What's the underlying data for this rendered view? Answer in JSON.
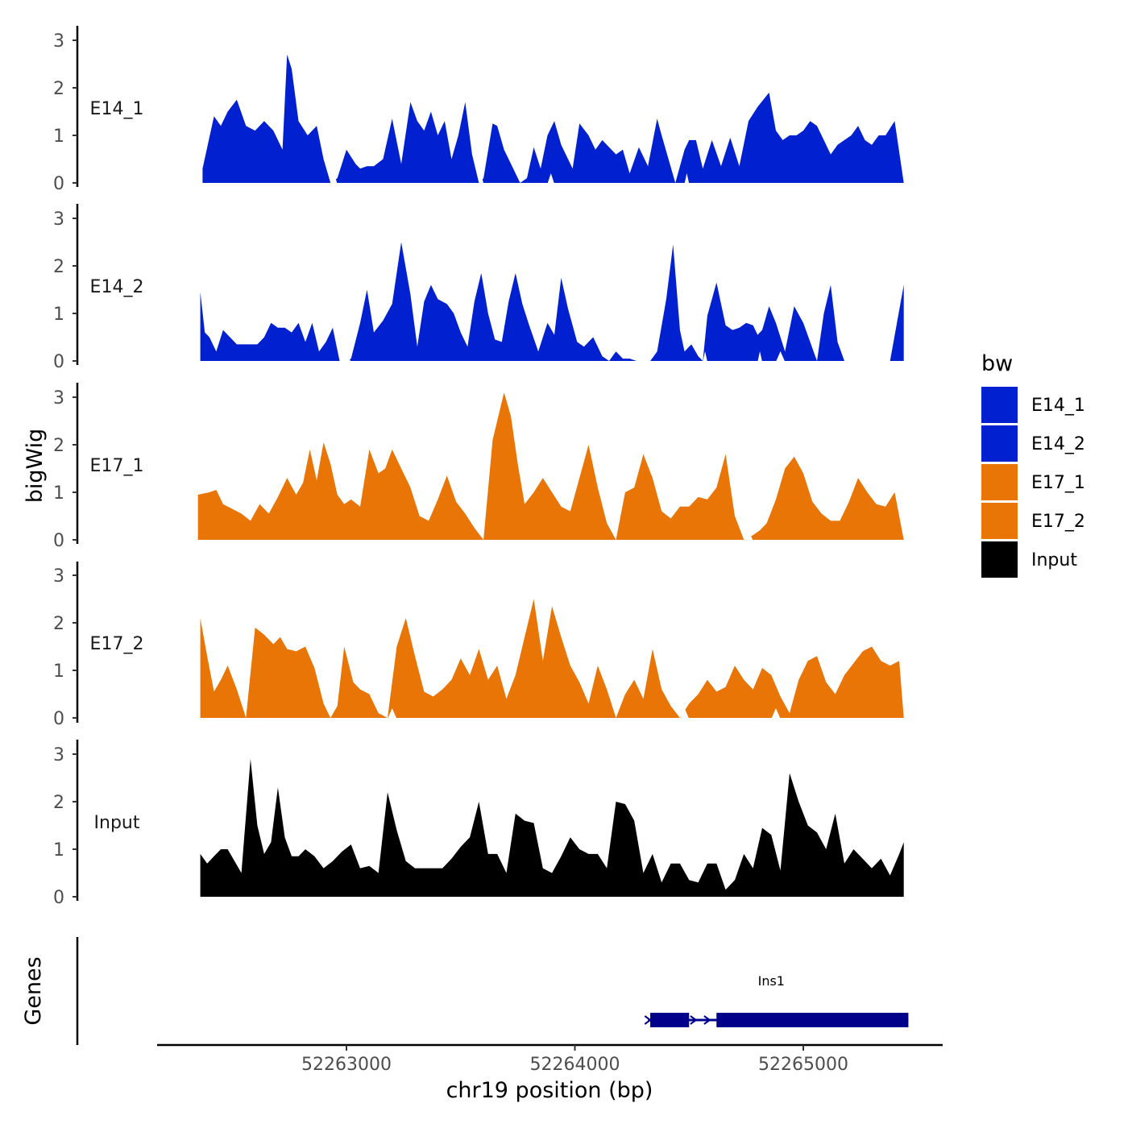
{
  "chart_data": {
    "type": "area",
    "xlabel": "chr19 position (bp)",
    "ylabel": "bigWig",
    "genes_label": "Genes",
    "xlim": [
      52262200,
      52265600
    ],
    "ylim": [
      0,
      3.3
    ],
    "x_ticks": [
      52263000,
      52264000,
      52265000
    ],
    "x_tick_labels": [
      "52263000",
      "52264000",
      "52265000"
    ],
    "y_ticks": [
      0,
      1,
      2,
      3
    ],
    "y_tick_labels": [
      "0",
      "1",
      "2",
      "3"
    ],
    "legend": {
      "title": "bw",
      "position": "right",
      "entries": [
        {
          "label": "E14_1",
          "color": "#0121D1"
        },
        {
          "label": "E14_2",
          "color": "#0121D1"
        },
        {
          "label": "E17_1",
          "color": "#E87506"
        },
        {
          "label": "E17_2",
          "color": "#E87506"
        },
        {
          "label": "Input",
          "color": "#000000"
        }
      ]
    },
    "series": [
      {
        "name": "E14_1",
        "color": "#0121D1",
        "x": [
          52262370,
          52262420,
          52262450,
          52262480,
          52262520,
          52262560,
          52262600,
          52262640,
          52262680,
          52262720,
          52262740,
          52262760,
          52262790,
          52262830,
          52262870,
          52262900,
          52262930,
          52262960,
          52263000,
          52263040,
          52263060,
          52263090,
          52263120,
          52263160,
          52263200,
          52263240,
          52263280,
          52263310,
          52263340,
          52263370,
          52263400,
          52263430,
          52263460,
          52263490,
          52263520,
          52263550,
          52263580,
          52263600,
          52263640,
          52263660,
          52263690,
          52263730,
          52263760,
          52263790,
          52263820,
          52263850,
          52263880,
          52263910,
          52263940,
          52263960,
          52263990,
          52264020,
          52264060,
          52264090,
          52264120,
          52264150,
          52264180,
          52264210,
          52264240,
          52264280,
          52264320,
          52264360,
          52264380,
          52264410,
          52264440,
          52264480,
          52264500,
          52264530,
          52264560,
          52264600,
          52264640,
          52264680,
          52264720,
          52264760,
          52264800,
          52264850,
          52264880,
          52264910,
          52264940,
          52264970,
          52265000,
          52265030,
          52265060,
          52265090,
          52265120,
          52265150,
          52265180,
          52265210,
          52265240,
          52265270,
          52265300,
          52265330,
          52265360,
          52265400,
          52265440
        ],
        "values": [
          0.3,
          1.4,
          1.2,
          1.5,
          1.75,
          1.2,
          1.1,
          1.3,
          1.1,
          0.7,
          2.7,
          2.4,
          1.3,
          1.0,
          1.2,
          0.5,
          0.0,
          0.1,
          0.7,
          0.4,
          0.3,
          0.35,
          0.35,
          0.5,
          1.35,
          0.4,
          1.7,
          1.3,
          1.1,
          1.5,
          1.0,
          1.3,
          0.5,
          1.0,
          1.7,
          0.6,
          0.0,
          0.1,
          1.25,
          1.2,
          0.7,
          0.3,
          0.0,
          0.1,
          0.75,
          0.3,
          1.0,
          1.3,
          0.8,
          0.6,
          0.3,
          1.25,
          1.0,
          0.7,
          0.9,
          0.75,
          0.6,
          0.7,
          0.2,
          0.75,
          0.35,
          1.35,
          1.0,
          0.5,
          0.0,
          0.7,
          0.9,
          0.9,
          0.3,
          0.9,
          0.35,
          0.95,
          0.35,
          1.3,
          1.6,
          1.9,
          1.1,
          0.9,
          1.0,
          1.0,
          1.1,
          1.3,
          1.2,
          0.9,
          0.6,
          0.8,
          0.9,
          1.0,
          1.2,
          0.9,
          0.8,
          1.0,
          1.0,
          1.3,
          0.0
        ],
        "gaps": [
          [
            52262930,
            52262960
          ],
          [
            52263580,
            52263600
          ],
          [
            52263880,
            52263910
          ],
          [
            52264480,
            52264500
          ]
        ]
      },
      {
        "name": "E14_2",
        "color": "#0121D1",
        "x": [
          52262360,
          52262380,
          52262400,
          52262430,
          52262460,
          52262490,
          52262520,
          52262550,
          52262580,
          52262610,
          52262640,
          52262670,
          52262700,
          52262730,
          52262760,
          52262790,
          52262820,
          52262850,
          52262880,
          52262910,
          52262940,
          52262970,
          52263000,
          52263020,
          52263060,
          52263090,
          52263120,
          52263160,
          52263200,
          52263240,
          52263280,
          52263310,
          52263340,
          52263370,
          52263400,
          52263440,
          52263470,
          52263500,
          52263530,
          52263560,
          52263590,
          52263620,
          52263650,
          52263680,
          52263710,
          52263740,
          52263770,
          52263800,
          52263840,
          52263880,
          52263910,
          52263940,
          52263970,
          52264010,
          52264040,
          52264080,
          52264120,
          52264150,
          52264180,
          52264210,
          52264240,
          52264270,
          52264300,
          52264330,
          52264360,
          52264400,
          52264430,
          52264460,
          52264480,
          52264510,
          52264540,
          52264560,
          52264580,
          52264620,
          52264660,
          52264690,
          52264720,
          52264750,
          52264780,
          52264800,
          52264820,
          52264850,
          52264880,
          52264920,
          52264960,
          52265000,
          52265030,
          52265060,
          52265090,
          52265120,
          52265150,
          52265180,
          52265210,
          52265250,
          52265290,
          52265330,
          52265380,
          52265440
        ],
        "values": [
          1.45,
          0.6,
          0.5,
          0.2,
          0.65,
          0.5,
          0.35,
          0.35,
          0.35,
          0.35,
          0.5,
          0.8,
          0.7,
          0.7,
          0.6,
          0.8,
          0.4,
          0.8,
          0.2,
          0.4,
          0.7,
          0.0,
          0.0,
          0.05,
          0.8,
          1.5,
          0.6,
          0.85,
          1.2,
          2.5,
          1.4,
          0.3,
          1.25,
          1.6,
          1.3,
          1.2,
          1.0,
          0.6,
          0.3,
          1.25,
          1.85,
          1.0,
          0.45,
          0.4,
          1.25,
          1.85,
          1.2,
          0.75,
          0.2,
          0.8,
          0.55,
          1.75,
          1.1,
          0.4,
          0.3,
          0.5,
          0.1,
          0.0,
          0.2,
          0.05,
          0.05,
          0.0,
          0.0,
          0.0,
          0.2,
          1.3,
          2.45,
          0.65,
          0.2,
          0.35,
          0.1,
          0.0,
          0.95,
          1.65,
          0.75,
          0.65,
          0.7,
          0.8,
          0.75,
          0.55,
          0.65,
          1.15,
          0.8,
          0.2,
          1.15,
          0.8,
          0.4,
          0.0,
          1.0,
          1.6,
          0.4,
          0.0,
          0.0,
          0.0,
          0.0,
          0.0,
          0.0,
          1.6
        ],
        "gaps": [
          [
            52262970,
            52263020
          ],
          [
            52264560,
            52264580
          ],
          [
            52264800,
            52264820
          ],
          [
            52264880,
            52264920
          ]
        ]
      },
      {
        "name": "E17_1",
        "color": "#E87506",
        "x": [
          52262350,
          52262400,
          52262430,
          52262460,
          52262500,
          52262540,
          52262580,
          52262620,
          52262660,
          52262700,
          52262740,
          52262780,
          52262810,
          52262840,
          52262870,
          52262900,
          52262930,
          52262960,
          52262990,
          52263020,
          52263060,
          52263100,
          52263140,
          52263170,
          52263200,
          52263240,
          52263280,
          52263320,
          52263360,
          52263400,
          52263440,
          52263480,
          52263520,
          52263560,
          52263600,
          52263640,
          52263690,
          52263720,
          52263750,
          52263780,
          52263820,
          52263860,
          52263900,
          52263940,
          52263980,
          52264020,
          52264060,
          52264100,
          52264140,
          52264180,
          52264220,
          52264260,
          52264300,
          52264340,
          52264380,
          52264420,
          52264460,
          52264500,
          52264540,
          52264580,
          52264620,
          52264660,
          52264700,
          52264740,
          52264780,
          52264810,
          52264840,
          52264880,
          52264920,
          52264960,
          52265000,
          52265040,
          52265080,
          52265120,
          52265160,
          52265200,
          52265240,
          52265280,
          52265320,
          52265360,
          52265400,
          52265440
        ],
        "values": [
          0.95,
          1.0,
          1.05,
          0.75,
          0.65,
          0.55,
          0.4,
          0.75,
          0.55,
          0.9,
          1.3,
          0.95,
          1.2,
          1.9,
          1.25,
          2.05,
          1.6,
          0.95,
          0.75,
          0.85,
          0.7,
          1.9,
          1.4,
          1.5,
          1.9,
          1.5,
          1.1,
          0.5,
          0.4,
          0.85,
          1.35,
          0.8,
          0.55,
          0.25,
          0.0,
          2.1,
          3.1,
          2.6,
          1.6,
          0.75,
          1.0,
          1.3,
          1.0,
          0.7,
          0.6,
          1.3,
          2.0,
          1.1,
          0.35,
          0.0,
          1.0,
          1.1,
          1.8,
          1.3,
          0.6,
          0.45,
          0.7,
          0.7,
          0.9,
          0.85,
          1.1,
          1.8,
          0.5,
          0.0,
          0.1,
          0.2,
          0.35,
          0.85,
          1.5,
          1.75,
          1.4,
          0.8,
          0.55,
          0.4,
          0.4,
          0.8,
          1.3,
          1.0,
          0.75,
          0.7,
          1.0,
          0.0
        ],
        "gaps": [
          [
            52264740,
            52264780
          ]
        ]
      },
      {
        "name": "E17_2",
        "color": "#E87506",
        "x": [
          52262360,
          52262390,
          52262420,
          52262450,
          52262480,
          52262520,
          52262560,
          52262600,
          52262640,
          52262680,
          52262710,
          52262740,
          52262780,
          52262820,
          52262860,
          52262900,
          52262930,
          52262960,
          52262990,
          52263030,
          52263060,
          52263100,
          52263140,
          52263180,
          52263220,
          52263260,
          52263300,
          52263340,
          52263380,
          52263420,
          52263460,
          52263500,
          52263540,
          52263580,
          52263620,
          52263660,
          52263700,
          52263740,
          52263780,
          52263820,
          52263860,
          52263900,
          52263940,
          52263980,
          52264020,
          52264060,
          52264100,
          52264140,
          52264180,
          52264220,
          52264260,
          52264300,
          52264340,
          52264380,
          52264420,
          52264460,
          52264500,
          52264540,
          52264580,
          52264620,
          52264660,
          52264700,
          52264740,
          52264780,
          52264820,
          52264860,
          52264900,
          52264940,
          52264980,
          52265020,
          52265060,
          52265100,
          52265140,
          52265180,
          52265220,
          52265260,
          52265300,
          52265340,
          52265380,
          52265420,
          52265440
        ],
        "values": [
          2.1,
          1.3,
          0.55,
          0.8,
          1.1,
          0.6,
          0.0,
          1.9,
          1.75,
          1.55,
          1.7,
          1.45,
          1.4,
          1.5,
          1.05,
          0.3,
          0.0,
          0.25,
          1.5,
          0.75,
          0.6,
          0.5,
          0.1,
          0.0,
          1.5,
          2.1,
          1.3,
          0.55,
          0.45,
          0.6,
          0.8,
          1.25,
          0.9,
          1.45,
          0.8,
          1.1,
          0.4,
          0.9,
          1.7,
          2.5,
          1.2,
          2.35,
          1.7,
          1.1,
          0.75,
          0.3,
          1.1,
          0.6,
          0.0,
          0.5,
          0.8,
          0.4,
          1.45,
          0.6,
          0.25,
          0.0,
          0.3,
          0.5,
          0.8,
          0.55,
          0.65,
          1.1,
          0.8,
          0.6,
          1.05,
          0.9,
          0.45,
          0.1,
          0.8,
          1.2,
          1.3,
          0.75,
          0.5,
          0.9,
          1.15,
          1.4,
          1.5,
          1.2,
          1.1,
          1.2,
          0.0
        ],
        "gaps": [
          [
            52263180,
            52263220
          ],
          [
            52264460,
            52264500
          ],
          [
            52264860,
            52264900
          ]
        ]
      },
      {
        "name": "Input",
        "color": "#000000",
        "x": [
          52262360,
          52262390,
          52262420,
          52262450,
          52262480,
          52262510,
          52262540,
          52262580,
          52262610,
          52262640,
          52262670,
          52262700,
          52262730,
          52262760,
          52262790,
          52262820,
          52262860,
          52262900,
          52262940,
          52262980,
          52263020,
          52263060,
          52263100,
          52263140,
          52263180,
          52263220,
          52263260,
          52263300,
          52263340,
          52263380,
          52263420,
          52263460,
          52263500,
          52263540,
          52263580,
          52263620,
          52263660,
          52263700,
          52263740,
          52263780,
          52263820,
          52263860,
          52263900,
          52263940,
          52263980,
          52264020,
          52264060,
          52264100,
          52264140,
          52264180,
          52264220,
          52264260,
          52264300,
          52264340,
          52264380,
          52264420,
          52264460,
          52264500,
          52264540,
          52264580,
          52264620,
          52264660,
          52264700,
          52264740,
          52264780,
          52264820,
          52264860,
          52264900,
          52264940,
          52264980,
          52265020,
          52265060,
          52265100,
          52265140,
          52265180,
          52265220,
          52265260,
          52265300,
          52265340,
          52265380,
          52265420,
          52265440
        ],
        "values": [
          0.9,
          0.7,
          0.85,
          1.0,
          1.0,
          0.75,
          0.5,
          2.9,
          1.5,
          0.9,
          1.15,
          2.3,
          1.25,
          0.85,
          0.85,
          1.0,
          0.85,
          0.6,
          0.75,
          0.95,
          1.1,
          0.6,
          0.65,
          0.5,
          2.2,
          1.4,
          0.75,
          0.6,
          0.6,
          0.6,
          0.6,
          0.8,
          1.05,
          1.25,
          2.0,
          0.9,
          0.9,
          0.5,
          1.75,
          1.6,
          1.55,
          0.6,
          0.5,
          0.85,
          1.25,
          1.0,
          0.9,
          0.9,
          0.6,
          2.0,
          1.95,
          1.6,
          0.5,
          0.9,
          0.3,
          0.7,
          0.7,
          0.35,
          0.3,
          0.7,
          0.7,
          0.15,
          0.35,
          0.9,
          0.6,
          1.45,
          1.3,
          0.55,
          2.6,
          2.0,
          1.5,
          1.35,
          1.0,
          1.75,
          0.7,
          1.0,
          0.8,
          0.6,
          0.8,
          0.45,
          0.9,
          1.15
        ],
        "gaps": []
      }
    ],
    "genes": [
      {
        "name": "Ins1",
        "color": "#00008B",
        "start": 52264320,
        "end": 52265460,
        "exons": [
          [
            52264330,
            52264500
          ],
          [
            52264620,
            52265460
          ]
        ],
        "strand": "+"
      }
    ]
  }
}
